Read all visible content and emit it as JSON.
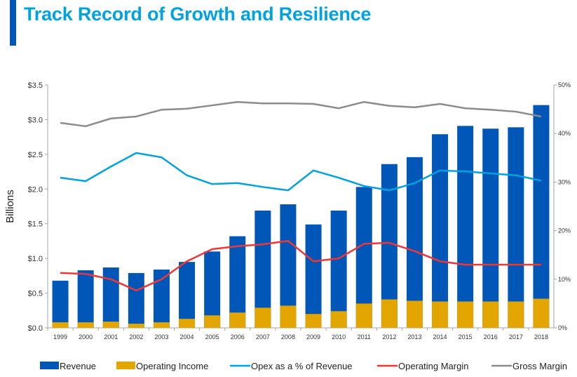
{
  "header": {
    "title": "Track Record of Growth and Resilience"
  },
  "colors": {
    "accent_bar": "#0057b8",
    "title": "#00a3e0"
  },
  "chart_data": {
    "type": "bar",
    "categories": [
      "1999",
      "2000",
      "2001",
      "2002",
      "2003",
      "2004",
      "2005",
      "2006",
      "2007",
      "2008",
      "2009",
      "2010",
      "2011",
      "2012",
      "2013",
      "2014",
      "2015",
      "2016",
      "2017",
      "2018"
    ],
    "ylabel": "Billions",
    "ylim": [
      0,
      3.5
    ],
    "y_ticks": [
      "$0.0",
      "$0.5",
      "$1.0",
      "$1.5",
      "$2.0",
      "$2.5",
      "$3.0",
      "$3.5"
    ],
    "y2lim": [
      0,
      50
    ],
    "y2_ticks": [
      "0%",
      "10%",
      "20%",
      "30%",
      "40%",
      "50%"
    ],
    "grid": false,
    "legend_position": "bottom",
    "series": [
      {
        "name": "Revenue",
        "type": "bar",
        "axis": "left",
        "color": "#0057b8",
        "values": [
          0.68,
          0.83,
          0.87,
          0.79,
          0.84,
          0.95,
          1.1,
          1.32,
          1.69,
          1.78,
          1.49,
          1.69,
          2.03,
          2.36,
          2.46,
          2.79,
          2.91,
          2.87,
          2.89,
          3.21
        ]
      },
      {
        "name": "Operating Income",
        "type": "bar",
        "axis": "left",
        "color": "#e3a600",
        "values": [
          0.08,
          0.08,
          0.09,
          0.06,
          0.08,
          0.13,
          0.18,
          0.22,
          0.29,
          0.32,
          0.2,
          0.24,
          0.35,
          0.41,
          0.39,
          0.38,
          0.38,
          0.38,
          0.38,
          0.42
        ]
      },
      {
        "name": "Opex as a % of Revenue",
        "type": "line",
        "axis": "right",
        "color": "#00a3e0",
        "values": [
          30.9,
          30.2,
          33.2,
          36.0,
          35.1,
          31.4,
          29.6,
          29.8,
          29.0,
          28.3,
          32.4,
          30.9,
          29.2,
          28.3,
          29.8,
          32.4,
          32.2,
          31.8,
          31.4,
          30.3
        ]
      },
      {
        "name": "Operating Margin",
        "type": "line",
        "axis": "right",
        "color": "#f23535",
        "values": [
          11.3,
          11.1,
          10.0,
          7.7,
          10.0,
          13.7,
          16.2,
          16.8,
          17.2,
          17.9,
          13.7,
          14.3,
          17.3,
          17.5,
          15.8,
          13.7,
          13.0,
          13.0,
          13.0,
          13.0
        ]
      },
      {
        "name": "Gross Margin",
        "type": "line",
        "axis": "right",
        "color": "#8c8c8c",
        "values": [
          42.2,
          41.5,
          43.1,
          43.5,
          44.9,
          45.1,
          45.8,
          46.5,
          46.2,
          46.2,
          46.1,
          45.2,
          46.5,
          45.7,
          45.4,
          46.1,
          45.2,
          44.9,
          44.5,
          43.5
        ]
      }
    ]
  }
}
